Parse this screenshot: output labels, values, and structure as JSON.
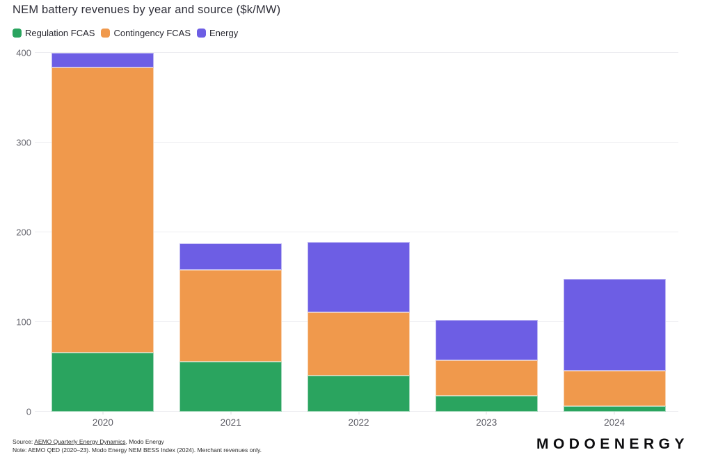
{
  "title": "NEM battery revenues by year and source ($k/MW)",
  "legend": [
    {
      "label": "Regulation FCAS",
      "color": "#2aa45f"
    },
    {
      "label": "Contingency FCAS",
      "color": "#f0994c"
    },
    {
      "label": "Energy",
      "color": "#6d5ee4"
    }
  ],
  "chart_data": {
    "type": "bar",
    "stacked": true,
    "title": "NEM battery revenues by year and source ($k/MW)",
    "xlabel": "",
    "ylabel": "$k/MW",
    "categories": [
      "2020",
      "2021",
      "2022",
      "2023",
      "2024"
    ],
    "series": [
      {
        "name": "Regulation FCAS",
        "color": "#2aa45f",
        "values": [
          66,
          56,
          40,
          18,
          6
        ]
      },
      {
        "name": "Contingency FCAS",
        "color": "#f0994c",
        "values": [
          318,
          102,
          71,
          39,
          40
        ]
      },
      {
        "name": "Energy",
        "color": "#6d5ee4",
        "values": [
          16,
          30,
          78,
          45,
          102
        ]
      }
    ],
    "totals": [
      400,
      188,
      189,
      102,
      148
    ],
    "ylim": [
      0,
      400
    ],
    "yticks": [
      0,
      100,
      200,
      300,
      400
    ],
    "grid": true,
    "legend_position": "top-left",
    "colors": {
      "grid": "#ededf1",
      "axis_text": "#67676f",
      "background": "#ffffff"
    }
  },
  "footer": {
    "source_prefix": "Source: ",
    "source_link": "AEMO Quarterly Energy Dynamics",
    "source_suffix": ", Modo Energy",
    "note": "Note: AEMO QED (2020–23). Modo Energy NEM BESS Index (2024). Merchant revenues only.",
    "logo": "MODOENERGY"
  }
}
